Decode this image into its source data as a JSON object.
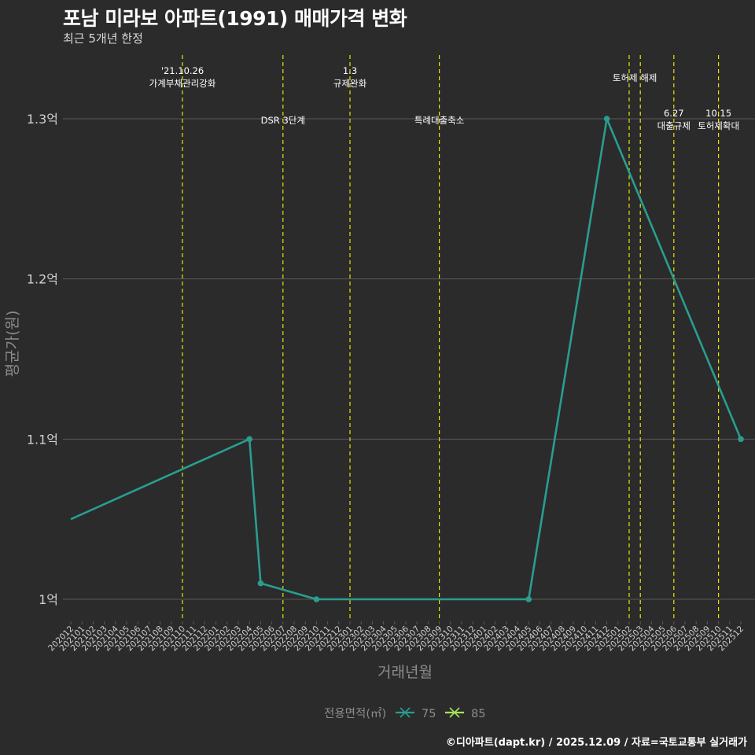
{
  "header": {
    "title": "포남 미라보 아파트(1991) 매매가격 변화",
    "subtitle": "최근 5개년 한정"
  },
  "caption": "©디아파트(dapt.kr) / 2025.12.09 / 자료=국토교통부 실거래가",
  "colors": {
    "background": "#2b2b2b",
    "grid": "#5a5a5a",
    "event_line": "#e5e500",
    "series_75": "#2a9d8f",
    "series_85": "#a6e35b",
    "axis_text": "#d0d0d0",
    "axis_title": "#8c8c8c"
  },
  "chart_data": {
    "type": "line",
    "xlabel": "거래년월",
    "ylabel": "평균가(원)",
    "categories": [
      "202012",
      "202101",
      "202102",
      "202103",
      "202104",
      "202105",
      "202106",
      "202107",
      "202108",
      "202109",
      "202110",
      "202111",
      "202112",
      "202201",
      "202202",
      "202203",
      "202204",
      "202205",
      "202206",
      "202207",
      "202208",
      "202209",
      "202210",
      "202211",
      "202212",
      "202301",
      "202302",
      "202303",
      "202304",
      "202305",
      "202306",
      "202307",
      "202308",
      "202309",
      "202310",
      "202311",
      "202312",
      "202401",
      "202402",
      "202403",
      "202404",
      "202405",
      "202406",
      "202407",
      "202408",
      "202409",
      "202410",
      "202411",
      "202412",
      "202501",
      "202502",
      "202503",
      "202504",
      "202505",
      "202506",
      "202507",
      "202508",
      "202509",
      "202510",
      "202511",
      "202512"
    ],
    "ylim": [
      0.985,
      1.335
    ],
    "yticks": [
      {
        "value": 1.0,
        "label": "1억"
      },
      {
        "value": 1.1,
        "label": "1.1억"
      },
      {
        "value": 1.2,
        "label": "1.2억"
      },
      {
        "value": 1.3,
        "label": "1.3억"
      }
    ],
    "grid": true,
    "legend": {
      "title": "전용면적(㎡)",
      "position": "bottom",
      "entries": [
        {
          "label": "75",
          "color": "#2a9d8f"
        },
        {
          "label": "85",
          "color": "#a6e35b"
        }
      ]
    },
    "series": [
      {
        "name": "75",
        "color": "#2a9d8f",
        "points": [
          {
            "x": "202012",
            "y": 1.05,
            "marker": false
          },
          {
            "x": "202204",
            "y": 1.1,
            "marker": true
          },
          {
            "x": "202205",
            "y": 1.01,
            "marker": true
          },
          {
            "x": "202210",
            "y": 1.0,
            "marker": true
          },
          {
            "x": "202405",
            "y": 1.0,
            "marker": true
          },
          {
            "x": "202412",
            "y": 1.3,
            "marker": true
          },
          {
            "x": "202512",
            "y": 1.1,
            "marker": true
          }
        ]
      }
    ],
    "events": [
      {
        "x": "202110",
        "lines": [
          "'21.10.26",
          "가계부채관리강화"
        ],
        "level": "top"
      },
      {
        "x": "202207",
        "lines": [
          "DSR 3단계"
        ],
        "level": "mid"
      },
      {
        "x": "202301",
        "lines": [
          "1.3",
          "규제완화"
        ],
        "level": "top"
      },
      {
        "x": "202309",
        "lines": [
          "특례대출축소"
        ],
        "level": "mid"
      },
      {
        "x": "202502",
        "lines": [
          "토허제 해제"
        ],
        "level": "upper"
      },
      {
        "x": "202503",
        "lines": [],
        "level": "none"
      },
      {
        "x": "202506",
        "lines": [
          "6.27",
          "대출규제"
        ],
        "level": "low"
      },
      {
        "x": "202510",
        "lines": [
          "10.15",
          "토허제확대"
        ],
        "level": "low"
      }
    ],
    "event_label_anchor": [
      {
        "event": "202502",
        "between": "202503"
      }
    ]
  }
}
